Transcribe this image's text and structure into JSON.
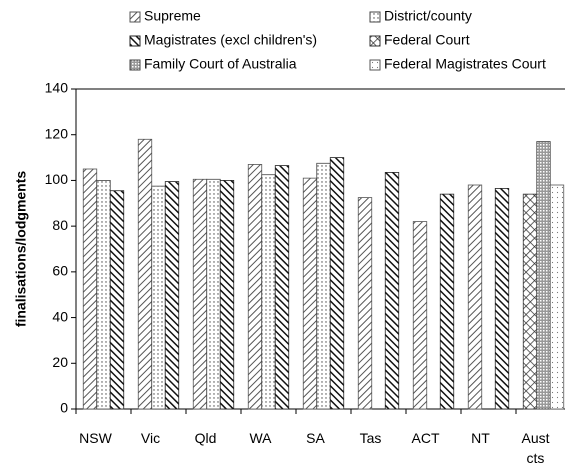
{
  "chart_data": {
    "type": "bar",
    "y_label": "finalisations/lodgments",
    "categories": [
      "NSW",
      "Vic",
      "Qld",
      "WA",
      "SA",
      "Tas",
      "ACT",
      "NT",
      "Aust cts"
    ],
    "series": [
      {
        "name": "Supreme",
        "color": "#555555",
        "values": [
          105,
          118,
          100.5,
          107,
          101,
          92.5,
          82,
          98,
          null
        ]
      },
      {
        "name": "District/county",
        "color": "#444444",
        "values": [
          100,
          97.5,
          100.5,
          102.5,
          107.5,
          null,
          null,
          null,
          null
        ]
      },
      {
        "name": "Magistrates (excl children's)",
        "color": "#222222",
        "values": [
          95.5,
          99.5,
          100,
          106.5,
          110,
          103.5,
          94,
          96.5,
          null
        ]
      },
      {
        "name": "Federal Court",
        "color": "#333333",
        "values": [
          null,
          null,
          null,
          null,
          null,
          null,
          null,
          null,
          94
        ]
      },
      {
        "name": "Family Court of Australia",
        "color": "#444444",
        "values": [
          null,
          null,
          null,
          null,
          null,
          null,
          null,
          null,
          117
        ]
      },
      {
        "name": "Federal Magistrates Court",
        "color": "#555555",
        "values": [
          null,
          null,
          null,
          null,
          null,
          null,
          null,
          null,
          98
        ]
      }
    ],
    "ylim": [
      0,
      140
    ],
    "yticks": [
      0,
      20,
      40,
      60,
      80,
      100,
      120,
      140
    ],
    "grid": false
  }
}
